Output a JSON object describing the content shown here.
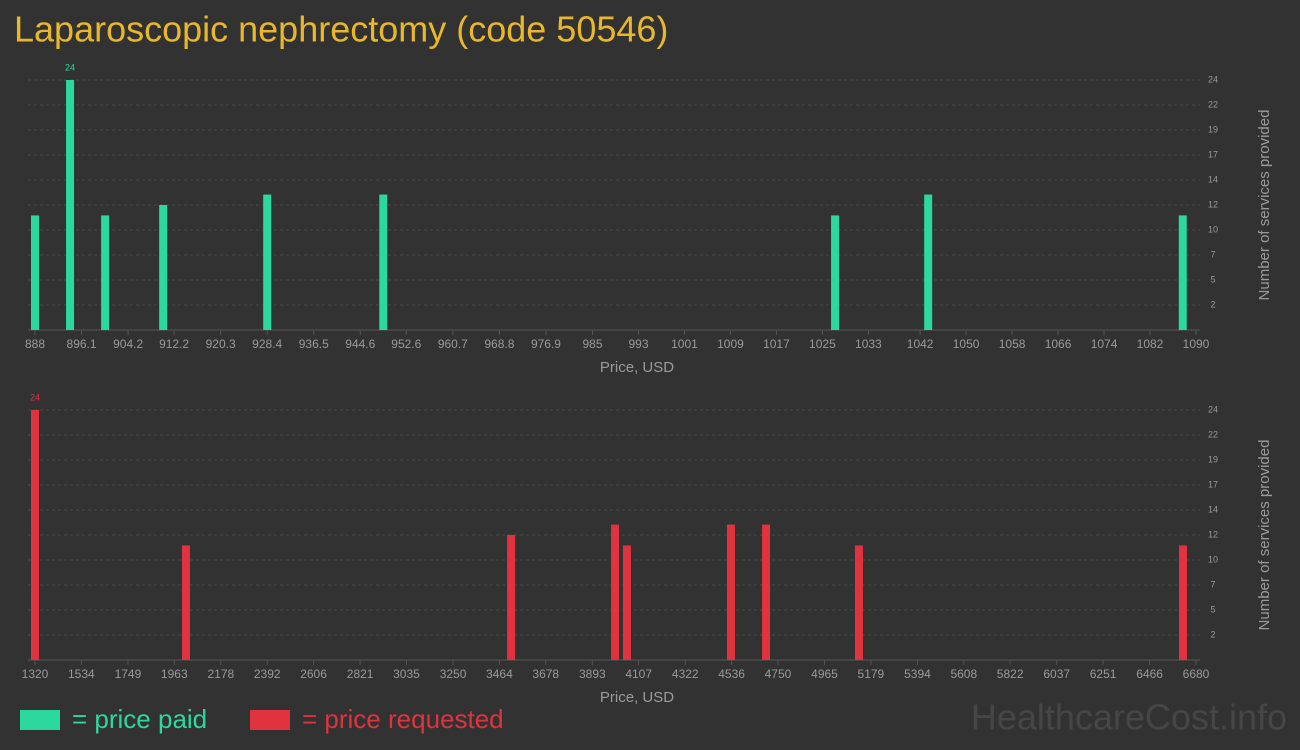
{
  "title": "Laparoscopic nephrectomy (code 50546)",
  "watermark": "HealthcareCost.info",
  "chart_data": [
    {
      "type": "bar",
      "x_label": "Price, USD",
      "y_label": "Number of services provided",
      "xlim": [
        888,
        1090
      ],
      "xticks": [
        888,
        896.1,
        904.2,
        912.2,
        920.3,
        928.4,
        936.5,
        944.6,
        952.6,
        960.7,
        968.8,
        976.9,
        985,
        993,
        1001,
        1009,
        1017,
        1025,
        1033,
        1042,
        1050,
        1058,
        1066,
        1074,
        1082,
        1090
      ],
      "ylim": [
        0,
        24
      ],
      "yticks": [
        {
          "value": 2.4,
          "label": "2"
        },
        {
          "value": 4.8,
          "label": "5"
        },
        {
          "value": 7.2,
          "label": "7"
        },
        {
          "value": 9.6,
          "label": "10"
        },
        12,
        {
          "value": 14.4,
          "label": "14"
        },
        {
          "value": 16.8,
          "label": "17"
        },
        {
          "value": 19.2,
          "label": "19"
        },
        {
          "value": 21.6,
          "label": "22"
        },
        24
      ],
      "grid": true,
      "series": [
        {
          "name": "= price paid",
          "color": "#2bd99f",
          "x": [
            888,
            894.1,
            900.2,
            910.3,
            928.4,
            948.6,
            1027.2,
            1043.4,
            1087.7
          ],
          "values": [
            11,
            24,
            11,
            12,
            13,
            13,
            11,
            13,
            11
          ]
        }
      ]
    },
    {
      "type": "bar",
      "x_label": "Price, USD",
      "y_label": "Number of services provided",
      "xlim": [
        1320,
        6680
      ],
      "xticks": [
        1320,
        1534,
        1749,
        1963,
        2178,
        2392,
        2606,
        2821,
        3035,
        3250,
        3464,
        3678,
        3893,
        4107,
        4322,
        4536,
        4750,
        4965,
        5179,
        5394,
        5608,
        5822,
        6037,
        6251,
        6466,
        6680
      ],
      "ylim": [
        0,
        24
      ],
      "yticks": [
        {
          "value": 2.4,
          "label": "2"
        },
        {
          "value": 4.8,
          "label": "5"
        },
        {
          "value": 7.2,
          "label": "7"
        },
        {
          "value": 9.6,
          "label": "10"
        },
        12,
        {
          "value": 14.4,
          "label": "14"
        },
        {
          "value": 16.8,
          "label": "17"
        },
        {
          "value": 19.2,
          "label": "19"
        },
        {
          "value": 21.6,
          "label": "22"
        },
        24
      ],
      "grid": true,
      "series": [
        {
          "name": "= price requested",
          "color": "#e0323f",
          "x": [
            1320,
            2017,
            3518,
            3998,
            4053,
            4533,
            4695,
            5124,
            6620
          ],
          "values": [
            24,
            11,
            12,
            13,
            11,
            13,
            13,
            11,
            11
          ]
        }
      ]
    }
  ]
}
